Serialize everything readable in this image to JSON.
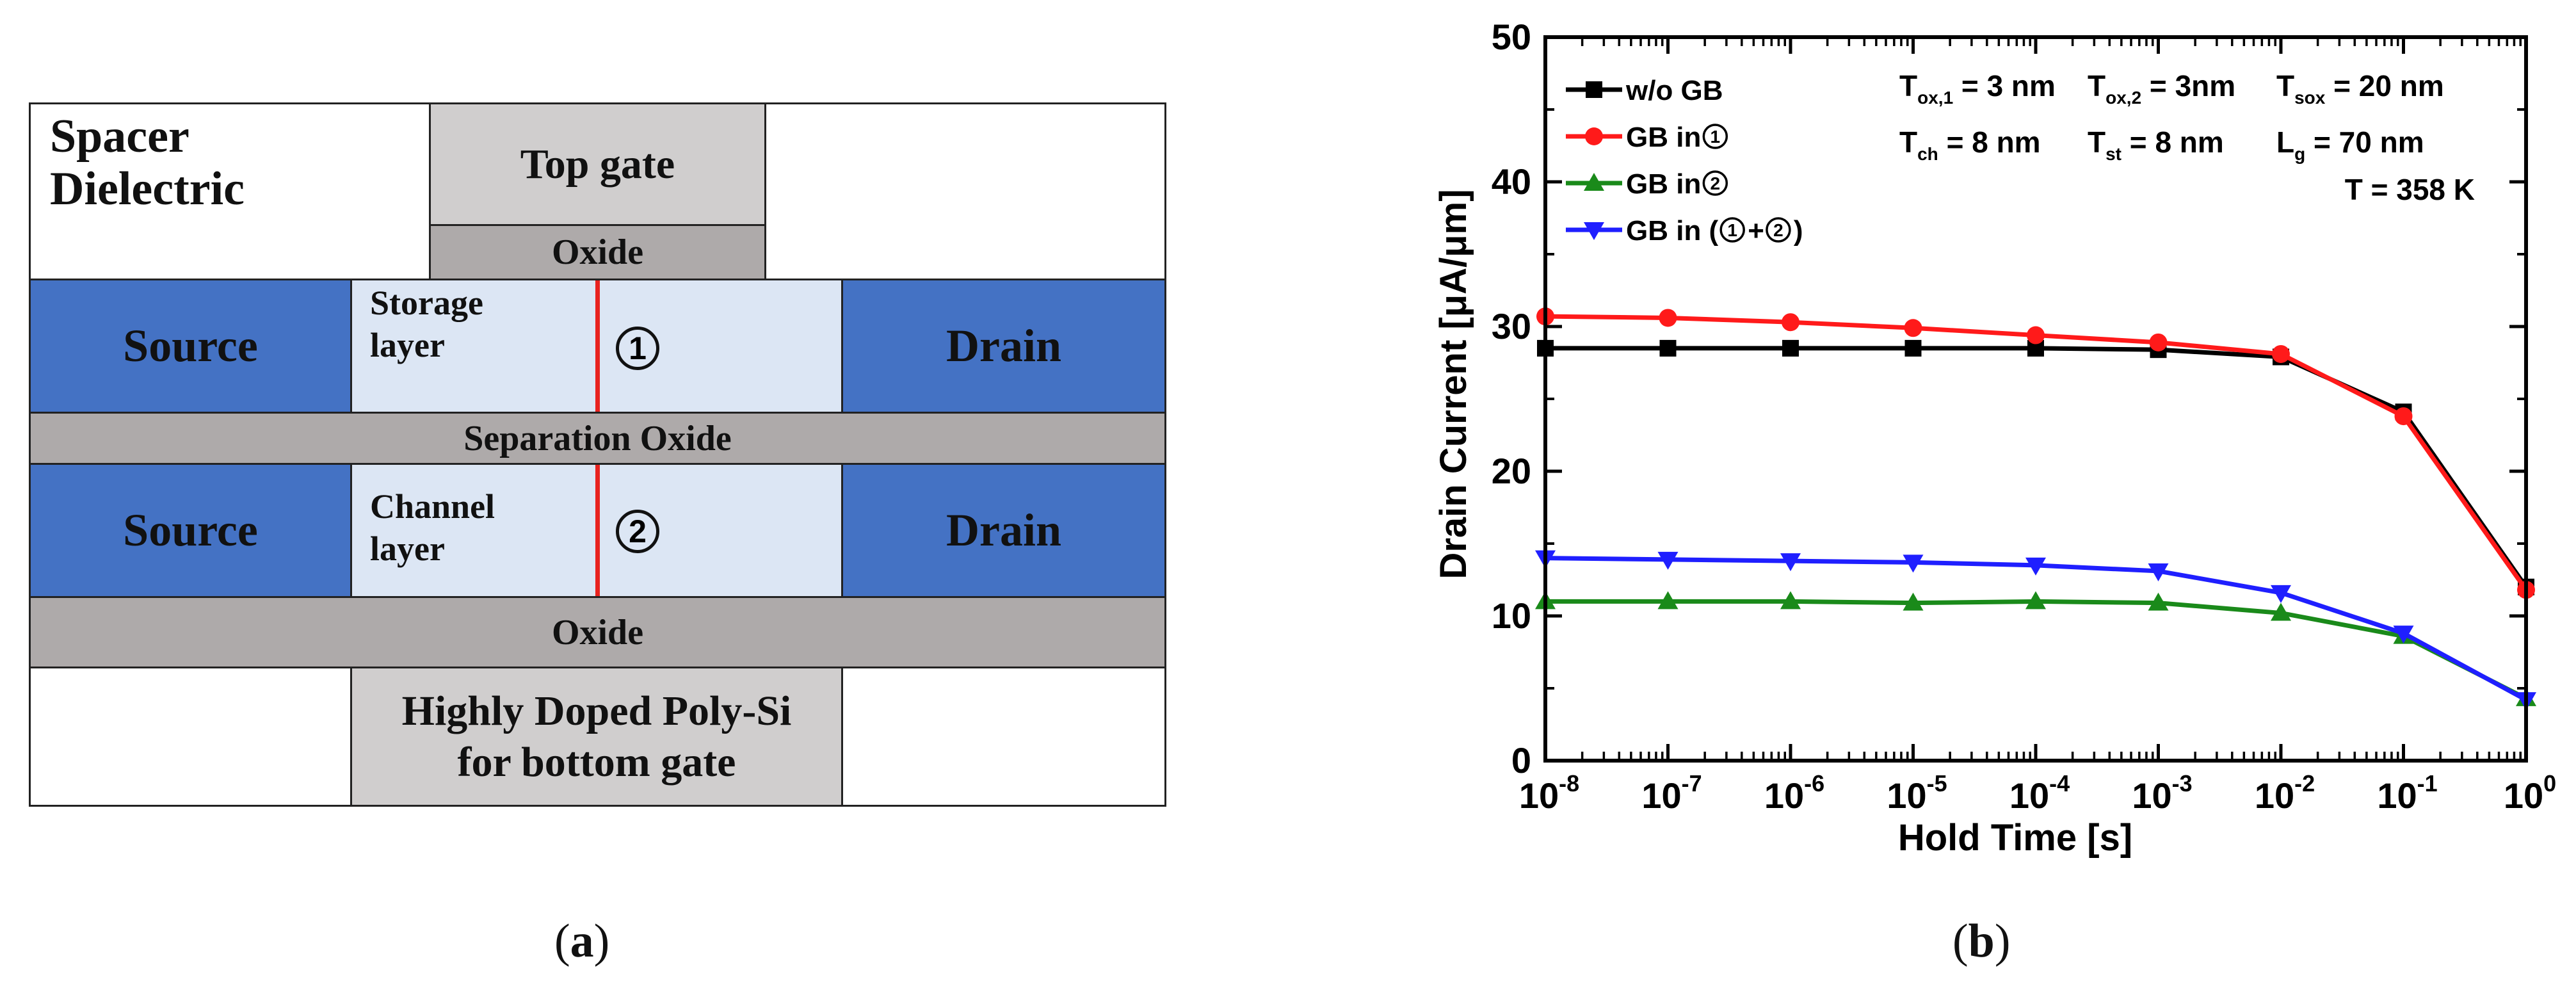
{
  "diagram": {
    "spacer_line1": "Spacer",
    "spacer_line2": "Dielectric",
    "top_gate": "Top gate",
    "top_oxide": "Oxide",
    "source_top": "Source",
    "storage_line1": "Storage",
    "storage_line2": "layer",
    "marker1": "1",
    "drain_top": "Drain",
    "separation_oxide": "Separation Oxide",
    "source_bottom": "Source",
    "channel_line1": "Channel",
    "channel_line2": "layer",
    "marker2": "2",
    "drain_bottom": "Drain",
    "bottom_oxide": "Oxide",
    "poly_line1": "Highly Doped Poly-Si",
    "poly_line2": "for bottom gate",
    "colors": {
      "electrode": "#4472c4",
      "layer": "#dce6f4",
      "oxide": "#aeaaaa",
      "gate": "#d0cece",
      "grain_boundary": "#e8221f"
    }
  },
  "captions": {
    "a_open": "(",
    "a_letter": "a",
    "a_close": ")",
    "b_open": "(",
    "b_letter": "b",
    "b_close": ")"
  },
  "chart_data": {
    "type": "line",
    "xscale": "log",
    "x_exponents": [
      -8,
      -7,
      -6,
      -5,
      -4,
      -3,
      -2,
      -1,
      0
    ],
    "x_tick_base": "10",
    "x_tick_exponents": [
      "-8",
      "-7",
      "-6",
      "-5",
      "-4",
      "-3",
      "-2",
      "-1",
      "0"
    ],
    "xlabel": "Hold Time [s]",
    "ylabel": "Drain Current [μA/μm]",
    "ylim": [
      0,
      50
    ],
    "yticks": [
      0,
      10,
      20,
      30,
      40,
      50
    ],
    "ytick_labels": [
      "0",
      "10",
      "20",
      "30",
      "40",
      "50"
    ],
    "legend_position": "top-left",
    "series": [
      {
        "name": "w/o GB",
        "label_text": "w/o GB",
        "marker": "square",
        "color": "#000000",
        "values": [
          28.5,
          28.5,
          28.5,
          28.5,
          28.5,
          28.4,
          27.9,
          24.1,
          12.0
        ]
      },
      {
        "name": "GB in ①",
        "label_prefix": "GB in ",
        "label_circle": "1",
        "label_suffix": "",
        "marker": "circle",
        "color": "#ff1a1a",
        "values": [
          30.7,
          30.6,
          30.3,
          29.9,
          29.4,
          28.9,
          28.1,
          23.8,
          11.8
        ]
      },
      {
        "name": "GB in ②",
        "label_prefix": "GB in ",
        "label_circle": "2",
        "label_suffix": "",
        "marker": "triangle-up",
        "color": "#1a8a1a",
        "values": [
          11.0,
          11.0,
          11.0,
          10.9,
          11.0,
          10.9,
          10.2,
          8.6,
          4.3
        ]
      },
      {
        "name": "GB in (①+②)",
        "label_prefix": "GB in (",
        "label_circle": "1",
        "label_mid": "+",
        "label_circle2": "2",
        "label_suffix": ")",
        "marker": "triangle-down",
        "color": "#1f1fff",
        "values": [
          14.0,
          13.9,
          13.8,
          13.7,
          13.5,
          13.1,
          11.6,
          8.8,
          4.2
        ]
      }
    ],
    "annotations": {
      "tox1": {
        "base": "T",
        "sub": "ox,1",
        "value": " = 3 nm"
      },
      "tox2": {
        "base": "T",
        "sub": "ox,2",
        "value": " = 3nm"
      },
      "tsox": {
        "base": "T",
        "sub": "sox",
        "value": " = 20 nm"
      },
      "tch": {
        "base": "T",
        "sub": "ch",
        "value": " = 8 nm"
      },
      "tst": {
        "base": "T",
        "sub": "st",
        "value": " = 8 nm"
      },
      "lg": {
        "base": "L",
        "sub": "g",
        "value": " = 70 nm"
      },
      "temp": "T = 358 K"
    }
  }
}
